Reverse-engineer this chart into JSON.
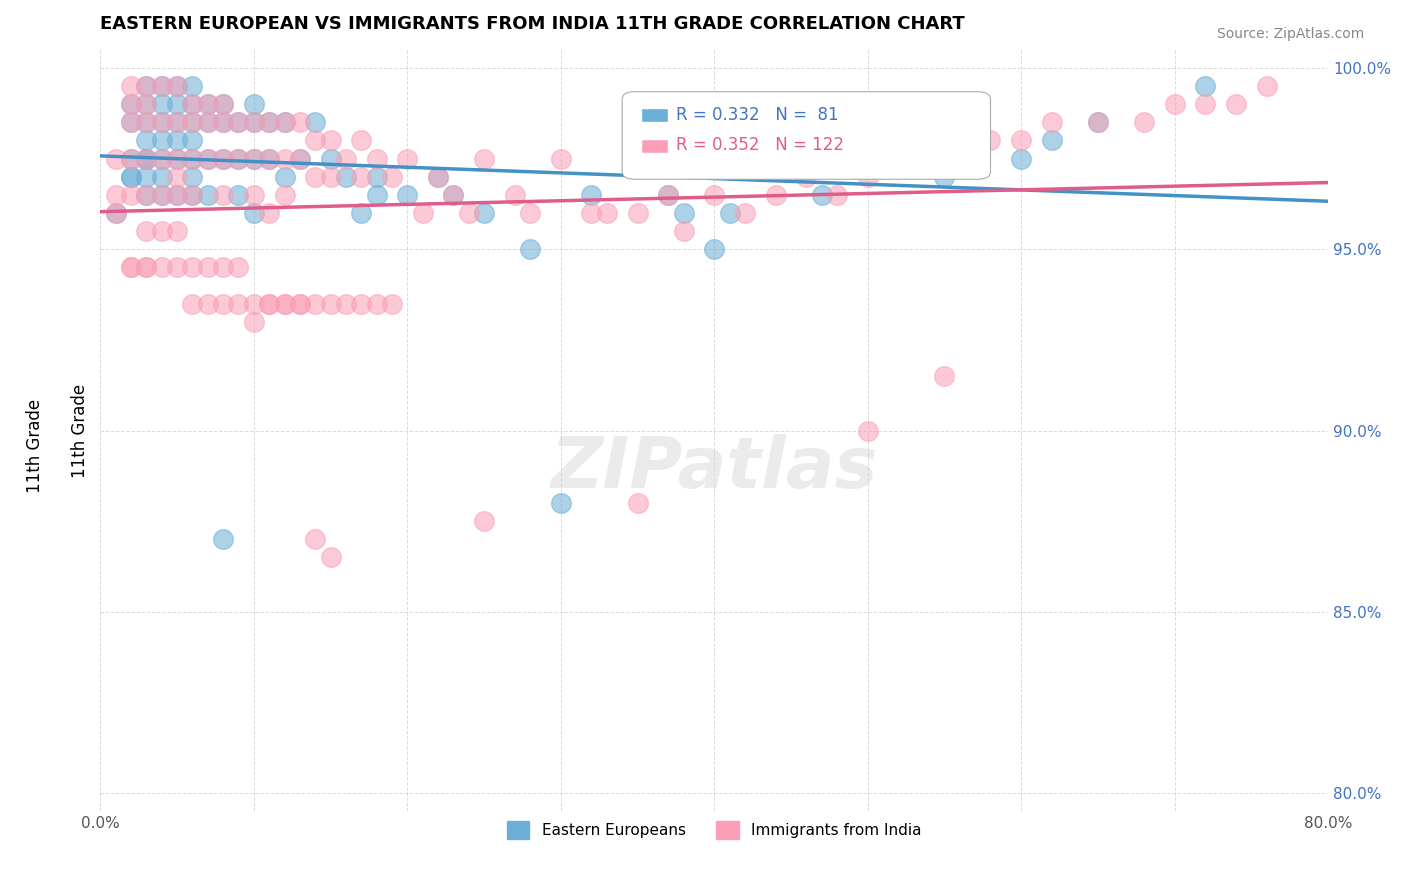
{
  "title": "EASTERN EUROPEAN VS IMMIGRANTS FROM INDIA 11TH GRADE CORRELATION CHART",
  "source": "Source: ZipAtlas.com",
  "xlabel": "",
  "ylabel": "11th Grade",
  "xlim": [
    0.0,
    0.8
  ],
  "ylim": [
    0.795,
    1.005
  ],
  "x_ticks": [
    0.0,
    0.1,
    0.2,
    0.3,
    0.4,
    0.5,
    0.6,
    0.7,
    0.8
  ],
  "x_tick_labels": [
    "0.0%",
    "",
    "",
    "",
    "",
    "",
    "",
    "",
    "80.0%"
  ],
  "y_ticks": [
    0.8,
    0.85,
    0.9,
    0.95,
    1.0
  ],
  "y_tick_labels": [
    "80.0%",
    "85.0%",
    "90.0%",
    "95.0%",
    "100.0%"
  ],
  "blue_label": "Eastern Europeans",
  "pink_label": "Immigrants from India",
  "blue_R": 0.332,
  "blue_N": 81,
  "pink_R": 0.352,
  "pink_N": 122,
  "blue_color": "#6baed6",
  "pink_color": "#fa9fb5",
  "blue_line_color": "#4292c6",
  "pink_line_color": "#e05c8a",
  "watermark": "ZIPatlas",
  "blue_x": [
    0.01,
    0.02,
    0.02,
    0.02,
    0.02,
    0.02,
    0.03,
    0.03,
    0.03,
    0.03,
    0.03,
    0.03,
    0.03,
    0.03,
    0.04,
    0.04,
    0.04,
    0.04,
    0.04,
    0.04,
    0.04,
    0.05,
    0.05,
    0.05,
    0.05,
    0.05,
    0.05,
    0.06,
    0.06,
    0.06,
    0.06,
    0.06,
    0.06,
    0.06,
    0.07,
    0.07,
    0.07,
    0.07,
    0.08,
    0.08,
    0.08,
    0.08,
    0.09,
    0.09,
    0.09,
    0.1,
    0.1,
    0.1,
    0.1,
    0.11,
    0.11,
    0.12,
    0.12,
    0.13,
    0.14,
    0.15,
    0.16,
    0.17,
    0.18,
    0.18,
    0.2,
    0.22,
    0.23,
    0.25,
    0.28,
    0.3,
    0.32,
    0.35,
    0.37,
    0.38,
    0.4,
    0.41,
    0.45,
    0.47,
    0.5,
    0.55,
    0.6,
    0.62,
    0.65,
    0.72
  ],
  "blue_y": [
    0.96,
    0.985,
    0.99,
    0.975,
    0.97,
    0.97,
    0.995,
    0.99,
    0.985,
    0.98,
    0.975,
    0.975,
    0.97,
    0.965,
    0.995,
    0.99,
    0.985,
    0.98,
    0.975,
    0.97,
    0.965,
    0.995,
    0.99,
    0.985,
    0.98,
    0.975,
    0.965,
    0.995,
    0.99,
    0.985,
    0.98,
    0.975,
    0.97,
    0.965,
    0.99,
    0.985,
    0.975,
    0.965,
    0.99,
    0.985,
    0.975,
    0.87,
    0.985,
    0.975,
    0.965,
    0.99,
    0.985,
    0.975,
    0.96,
    0.985,
    0.975,
    0.985,
    0.97,
    0.975,
    0.985,
    0.975,
    0.97,
    0.96,
    0.97,
    0.965,
    0.965,
    0.97,
    0.965,
    0.96,
    0.95,
    0.88,
    0.965,
    0.975,
    0.965,
    0.96,
    0.95,
    0.96,
    0.975,
    0.965,
    0.975,
    0.97,
    0.975,
    0.98,
    0.985,
    0.995
  ],
  "pink_x": [
    0.01,
    0.01,
    0.01,
    0.02,
    0.02,
    0.02,
    0.02,
    0.02,
    0.03,
    0.03,
    0.03,
    0.03,
    0.03,
    0.03,
    0.04,
    0.04,
    0.04,
    0.04,
    0.04,
    0.05,
    0.05,
    0.05,
    0.05,
    0.05,
    0.05,
    0.06,
    0.06,
    0.06,
    0.06,
    0.07,
    0.07,
    0.07,
    0.08,
    0.08,
    0.08,
    0.08,
    0.09,
    0.09,
    0.1,
    0.1,
    0.1,
    0.11,
    0.11,
    0.11,
    0.12,
    0.12,
    0.12,
    0.13,
    0.13,
    0.14,
    0.14,
    0.15,
    0.15,
    0.16,
    0.17,
    0.17,
    0.18,
    0.19,
    0.2,
    0.21,
    0.22,
    0.23,
    0.24,
    0.25,
    0.27,
    0.28,
    0.3,
    0.32,
    0.33,
    0.35,
    0.37,
    0.38,
    0.4,
    0.42,
    0.44,
    0.46,
    0.48,
    0.5,
    0.52,
    0.54,
    0.56,
    0.58,
    0.6,
    0.62,
    0.65,
    0.68,
    0.7,
    0.72,
    0.74,
    0.76,
    0.5,
    0.55,
    0.35,
    0.25,
    0.14,
    0.15,
    0.09,
    0.1,
    0.08,
    0.07,
    0.06,
    0.05,
    0.04,
    0.03,
    0.03,
    0.02,
    0.02,
    0.07,
    0.06,
    0.08,
    0.09,
    0.1,
    0.11,
    0.12,
    0.11,
    0.12,
    0.13,
    0.13,
    0.14,
    0.15,
    0.16,
    0.17,
    0.18,
    0.19
  ],
  "pink_y": [
    0.975,
    0.965,
    0.96,
    0.995,
    0.99,
    0.985,
    0.975,
    0.965,
    0.995,
    0.99,
    0.985,
    0.975,
    0.965,
    0.955,
    0.995,
    0.985,
    0.975,
    0.965,
    0.955,
    0.995,
    0.985,
    0.975,
    0.97,
    0.965,
    0.955,
    0.99,
    0.985,
    0.975,
    0.965,
    0.99,
    0.985,
    0.975,
    0.99,
    0.985,
    0.975,
    0.965,
    0.985,
    0.975,
    0.985,
    0.975,
    0.965,
    0.985,
    0.975,
    0.96,
    0.985,
    0.975,
    0.965,
    0.985,
    0.975,
    0.98,
    0.97,
    0.98,
    0.97,
    0.975,
    0.98,
    0.97,
    0.975,
    0.97,
    0.975,
    0.96,
    0.97,
    0.965,
    0.96,
    0.975,
    0.965,
    0.96,
    0.975,
    0.96,
    0.96,
    0.96,
    0.965,
    0.955,
    0.965,
    0.96,
    0.965,
    0.97,
    0.965,
    0.97,
    0.975,
    0.975,
    0.975,
    0.98,
    0.98,
    0.985,
    0.985,
    0.985,
    0.99,
    0.99,
    0.99,
    0.995,
    0.9,
    0.915,
    0.88,
    0.875,
    0.87,
    0.865,
    0.945,
    0.93,
    0.945,
    0.945,
    0.945,
    0.945,
    0.945,
    0.945,
    0.945,
    0.945,
    0.945,
    0.935,
    0.935,
    0.935,
    0.935,
    0.935,
    0.935,
    0.935,
    0.935,
    0.935,
    0.935,
    0.935,
    0.935,
    0.935,
    0.935,
    0.935,
    0.935,
    0.935
  ]
}
